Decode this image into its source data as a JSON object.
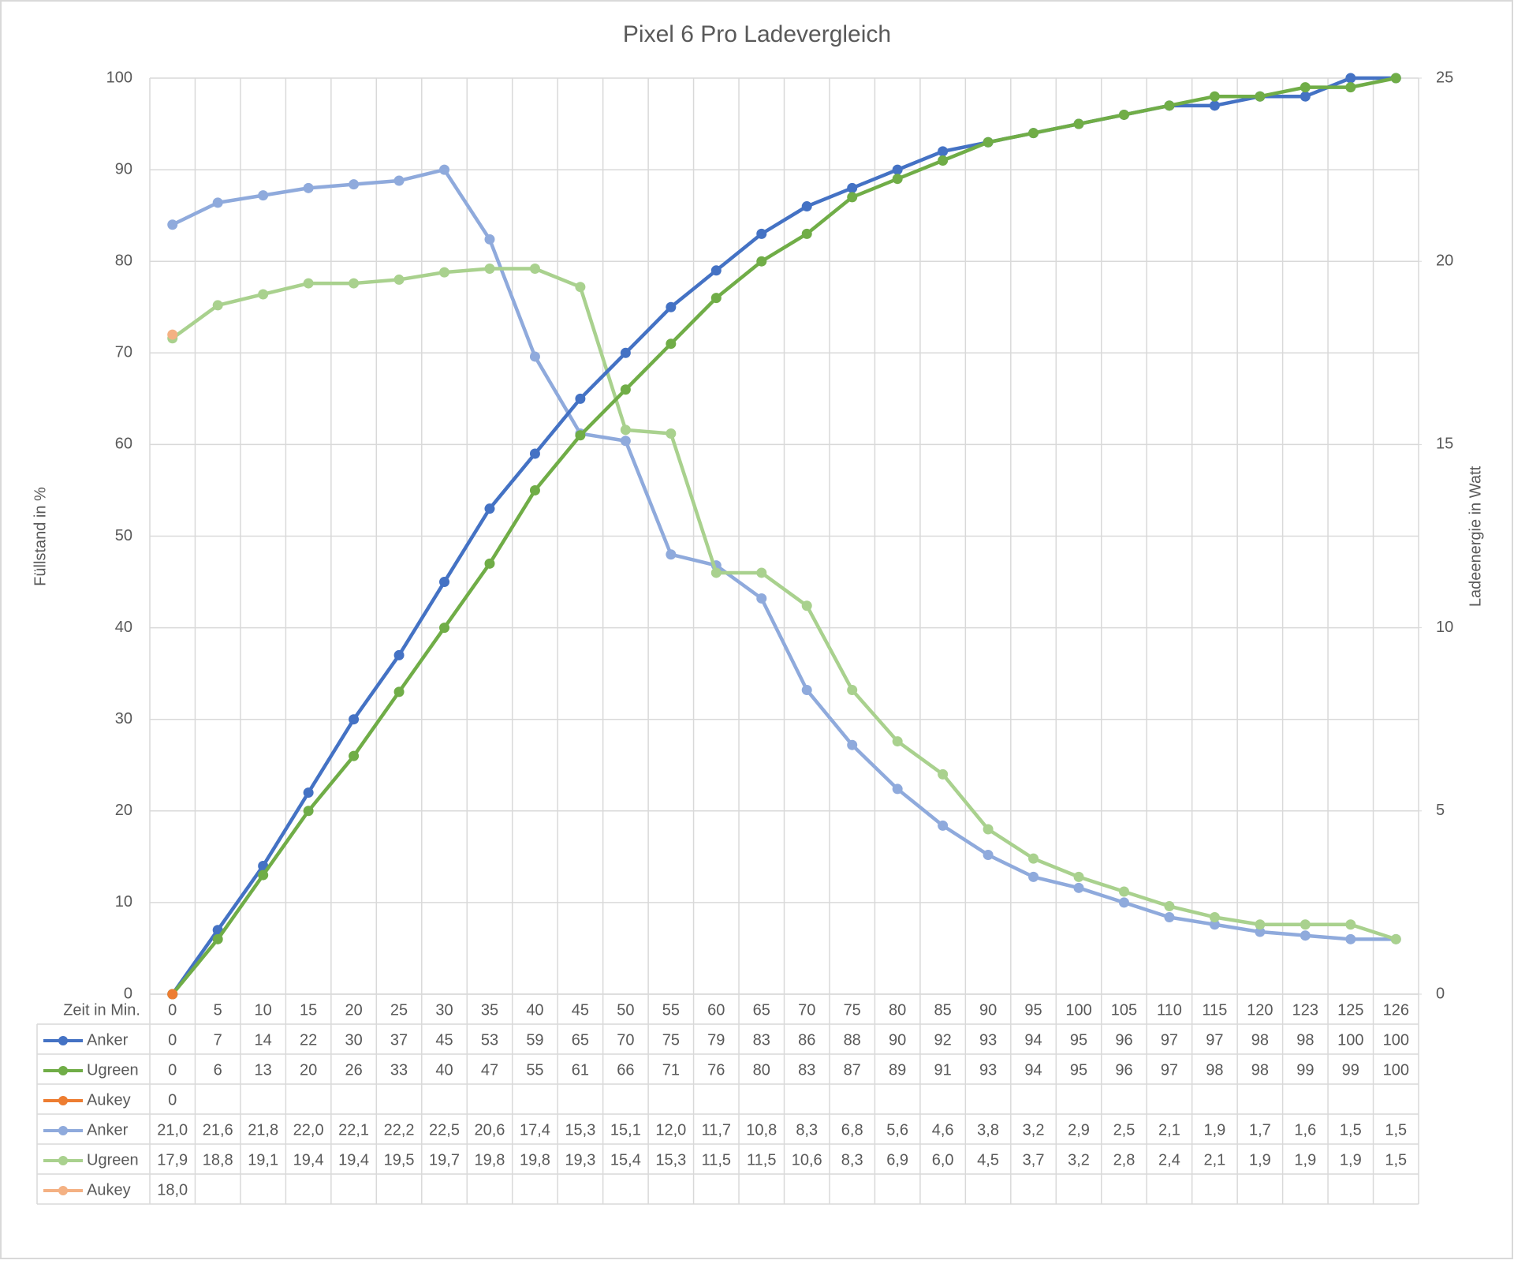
{
  "chart_data": {
    "type": "line",
    "title": "Pixel 6 Pro Ladevergleich",
    "y_label": "Füllstand in %",
    "y2_label": "Ladeenergie in Watt",
    "x_label": "Zeit in Min.",
    "categories": [
      0,
      5,
      10,
      15,
      20,
      25,
      30,
      35,
      40,
      45,
      50,
      55,
      60,
      65,
      70,
      75,
      80,
      85,
      90,
      95,
      100,
      105,
      110,
      115,
      120,
      123,
      125,
      126
    ],
    "series": [
      {
        "name": "Anker",
        "color": "#4472c4",
        "values": [
          0,
          7,
          14,
          22,
          30,
          37,
          45,
          53,
          59,
          65,
          70,
          75,
          79,
          83,
          86,
          88,
          90,
          92,
          93,
          94,
          95,
          96,
          97,
          97,
          98,
          98,
          100,
          100
        ]
      },
      {
        "name": "Ugreen",
        "color": "#70ad47",
        "values": [
          0,
          6,
          13,
          20,
          26,
          33,
          40,
          47,
          55,
          61,
          66,
          71,
          76,
          80,
          83,
          87,
          89,
          91,
          93,
          94,
          95,
          96,
          97,
          98,
          98,
          99,
          99,
          100
        ]
      },
      {
        "name": "Aukey",
        "color": "#ed7d31",
        "values": [
          0,
          null,
          null,
          null,
          null,
          null,
          null,
          null,
          null,
          null,
          null,
          null,
          null,
          null,
          null,
          null,
          null,
          null,
          null,
          null,
          null,
          null,
          null,
          null,
          null,
          null,
          null,
          null
        ]
      },
      {
        "name": "Anker",
        "color": "#8faadc",
        "axis": "y2",
        "values": [
          21.0,
          21.6,
          21.8,
          22.0,
          22.1,
          22.2,
          22.5,
          20.6,
          17.4,
          15.3,
          15.1,
          12.0,
          11.7,
          10.8,
          8.3,
          6.8,
          5.6,
          4.6,
          3.8,
          3.2,
          2.9,
          2.5,
          2.1,
          1.9,
          1.7,
          1.6,
          1.5,
          1.5
        ],
        "value_labels": [
          "21,0",
          "21,6",
          "21,8",
          "22,0",
          "22,1",
          "22,2",
          "22,5",
          "20,6",
          "17,4",
          "15,3",
          "15,1",
          "12,0",
          "11,7",
          "10,8",
          "8,3",
          "6,8",
          "5,6",
          "4,6",
          "3,8",
          "3,2",
          "2,9",
          "2,5",
          "2,1",
          "1,9",
          "1,7",
          "1,6",
          "1,5",
          "1,5"
        ]
      },
      {
        "name": "Ugreen",
        "color": "#a9d18e",
        "axis": "y2",
        "values": [
          17.9,
          18.8,
          19.1,
          19.4,
          19.4,
          19.5,
          19.7,
          19.8,
          19.8,
          19.3,
          15.4,
          15.3,
          11.5,
          11.5,
          10.6,
          8.3,
          6.9,
          6.0,
          4.5,
          3.7,
          3.2,
          2.8,
          2.4,
          2.1,
          1.9,
          1.9,
          1.9,
          1.5
        ],
        "value_labels": [
          "17,9",
          "18,8",
          "19,1",
          "19,4",
          "19,4",
          "19,5",
          "19,7",
          "19,8",
          "19,8",
          "19,3",
          "15,4",
          "15,3",
          "11,5",
          "11,5",
          "10,6",
          "8,3",
          "6,9",
          "6,0",
          "4,5",
          "3,7",
          "3,2",
          "2,8",
          "2,4",
          "2,1",
          "1,9",
          "1,9",
          "1,9",
          "1,5"
        ]
      },
      {
        "name": "Aukey",
        "color": "#f4b183",
        "axis": "y2",
        "values": [
          18.0,
          null,
          null,
          null,
          null,
          null,
          null,
          null,
          null,
          null,
          null,
          null,
          null,
          null,
          null,
          null,
          null,
          null,
          null,
          null,
          null,
          null,
          null,
          null,
          null,
          null,
          null,
          null
        ],
        "value_labels": [
          "18,0",
          null,
          null,
          null,
          null,
          null,
          null,
          null,
          null,
          null,
          null,
          null,
          null,
          null,
          null,
          null,
          null,
          null,
          null,
          null,
          null,
          null,
          null,
          null,
          null,
          null,
          null,
          null
        ]
      }
    ],
    "ylim": [
      0,
      100
    ],
    "yticks": [
      0,
      10,
      20,
      30,
      40,
      50,
      60,
      70,
      80,
      90,
      100
    ],
    "y2lim": [
      0,
      25
    ],
    "y2ticks": [
      0,
      5,
      10,
      15,
      20,
      25
    ],
    "grid": true
  }
}
